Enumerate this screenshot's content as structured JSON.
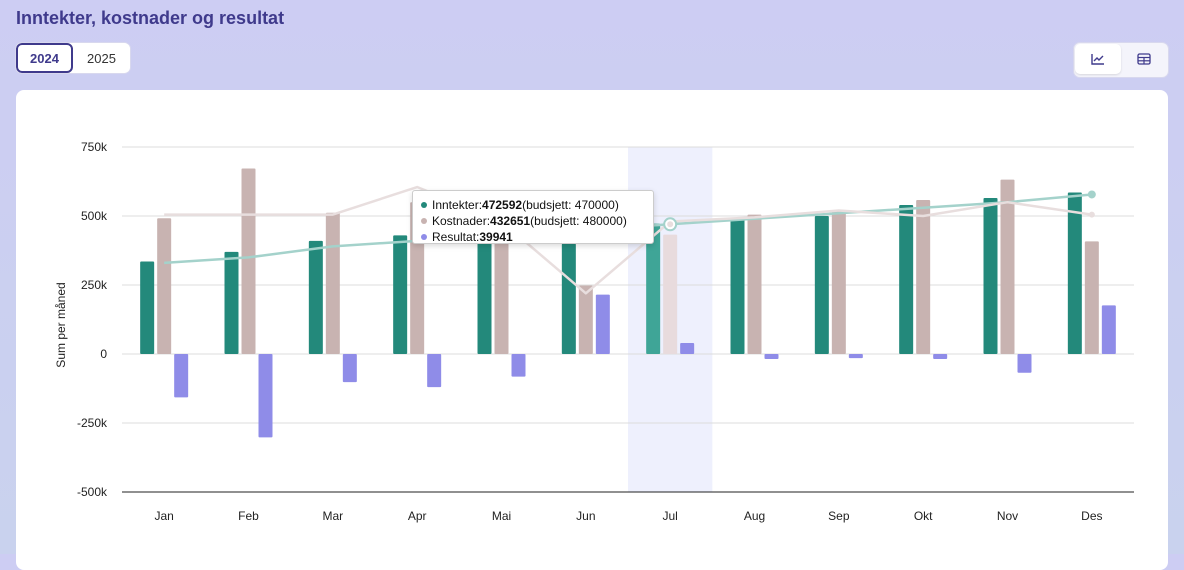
{
  "header": {
    "title": "Inntekter, kostnader og resultat"
  },
  "year_toggle": {
    "options": [
      "2024",
      "2025"
    ],
    "selected": "2024"
  },
  "view_toggle": {
    "options": [
      "chart-icon",
      "table-icon"
    ],
    "selected": "chart-icon"
  },
  "colors": {
    "income": "#23897b",
    "cost": "#c8b3b1",
    "result": "#8f8ce8",
    "income_line": "#a4d2cb",
    "budget_line": "#e8dede",
    "highlight": "#eef0fd"
  },
  "tooltip": {
    "income_label": "Inntekter: ",
    "income_value": "472592",
    "income_budget": " (budsjett: 470000)",
    "cost_label": "Kostnader: ",
    "cost_value": "432651",
    "cost_budget": " (budsjett: 480000)",
    "result_label": "Resultat: ",
    "result_value": "39941"
  },
  "chart_data": {
    "type": "bar",
    "categories": [
      "Jan",
      "Feb",
      "Mar",
      "Apr",
      "Mai",
      "Jun",
      "Jul",
      "Aug",
      "Sep",
      "Okt",
      "Nov",
      "Des"
    ],
    "ylabel": "Sum per måned",
    "ylim": [
      -500000,
      750000
    ],
    "yticks": [
      750000,
      500000,
      250000,
      0,
      -250000,
      -500000
    ],
    "ytick_labels": [
      "750k",
      "500k",
      "250k",
      "0",
      "-250k",
      "-500k"
    ],
    "highlight_category": "Jul",
    "series": [
      {
        "name": "Inntekter",
        "type": "bar",
        "values": [
          335000,
          370000,
          410000,
          430000,
          440000,
          400000,
          472592,
          487000,
          500000,
          540000,
          565000,
          585000
        ]
      },
      {
        "name": "Kostnader",
        "type": "bar",
        "values": [
          492000,
          672000,
          512000,
          550000,
          520000,
          248000,
          432651,
          505000,
          518000,
          558000,
          632000,
          408000
        ]
      },
      {
        "name": "Resultat",
        "type": "bar",
        "values": [
          -157000,
          -302000,
          -102000,
          -120000,
          -82000,
          215000,
          39941,
          -18000,
          -15000,
          -18000,
          -68000,
          176000
        ]
      },
      {
        "name": "Inntekter budsjett",
        "type": "line",
        "values": [
          330000,
          350000,
          390000,
          410000,
          440000,
          450000,
          470000,
          490000,
          510000,
          530000,
          550000,
          578000
        ]
      },
      {
        "name": "Kostnader budsjett",
        "type": "line",
        "values": [
          505000,
          505000,
          505000,
          605000,
          480000,
          220000,
          480000,
          495000,
          520000,
          500000,
          550000,
          505000
        ]
      }
    ]
  }
}
